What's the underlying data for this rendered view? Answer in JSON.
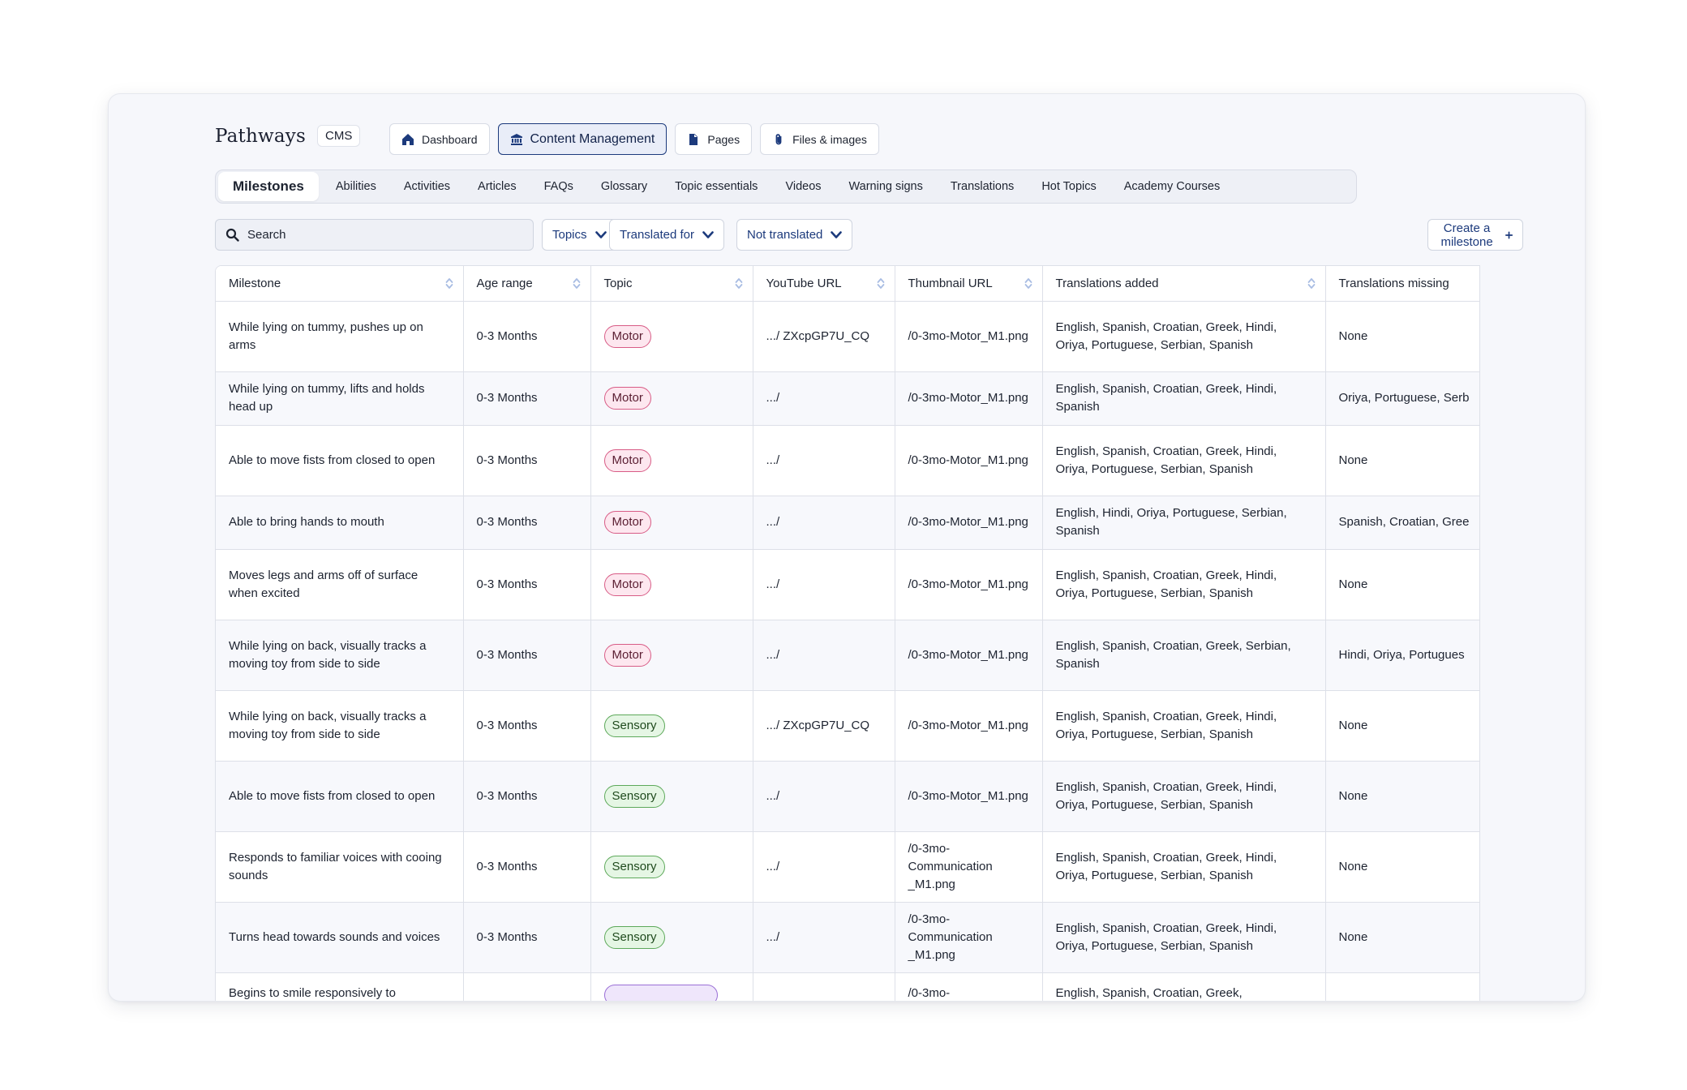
{
  "brand": {
    "name": "Pathways",
    "tag": "CMS"
  },
  "topnav": [
    {
      "label": "Dashboard",
      "icon": "home-icon",
      "active": false
    },
    {
      "label": "Content Management",
      "icon": "bank-icon",
      "active": true
    },
    {
      "label": "Pages",
      "icon": "document-icon",
      "active": false
    },
    {
      "label": "Files & images",
      "icon": "paperclip-icon",
      "active": false
    }
  ],
  "subtabs": [
    "Milestones",
    "Abilities",
    "Activities",
    "Articles",
    "FAQs",
    "Glossary",
    "Topic essentials",
    "Videos",
    "Warning signs",
    "Translations",
    "Hot Topics",
    "Academy Courses"
  ],
  "toolbar": {
    "search_placeholder": "Search",
    "filters": [
      "Topics",
      "Translated for",
      "Not translated"
    ],
    "create_label": "Create a milestone"
  },
  "table": {
    "headers": [
      "Milestone",
      "Age range",
      "Topic",
      "YouTube URL",
      "Thumbnail URL",
      "Translations added",
      "Translations missing"
    ],
    "rows": [
      {
        "milestone": "While lying on tummy, pushes up on arms",
        "age": "0-3 Months",
        "topic": "Motor",
        "youtube": ".../ ZXcpGP7U_CQ",
        "thumb": "/0-3mo-Motor_M1.png",
        "added": "English, Spanish, Croatian, Greek, Hindi, Oriya, Portuguese, Serbian, Spanish",
        "missing": "None"
      },
      {
        "milestone": "While lying on tummy, lifts and holds head up",
        "age": "0-3 Months",
        "topic": "Motor",
        "youtube": ".../",
        "thumb": "/0-3mo-Motor_M1.png",
        "added": "English, Spanish, Croatian, Greek, Hindi, Spanish",
        "missing": "Oriya, Portuguese, Serb"
      },
      {
        "milestone": "Able to move fists from closed to open",
        "age": "0-3 Months",
        "topic": "Motor",
        "youtube": ".../",
        "thumb": "/0-3mo-Motor_M1.png",
        "added": "English, Spanish, Croatian, Greek, Hindi, Oriya, Portuguese, Serbian, Spanish",
        "missing": "None"
      },
      {
        "milestone": "Able to bring hands to mouth",
        "age": "0-3 Months",
        "topic": "Motor",
        "youtube": ".../",
        "thumb": "/0-3mo-Motor_M1.png",
        "added": "English, Hindi, Oriya, Portuguese, Serbian, Spanish",
        "missing": "Spanish, Croatian, Gree"
      },
      {
        "milestone": "Moves legs and arms off of surface when excited",
        "age": "0-3 Months",
        "topic": "Motor",
        "youtube": ".../",
        "thumb": "/0-3mo-Motor_M1.png",
        "added": "English, Spanish, Croatian, Greek, Hindi, Oriya, Portuguese, Serbian, Spanish",
        "missing": "None"
      },
      {
        "milestone": "While lying on back, visually tracks a moving toy from side to side",
        "age": "0-3 Months",
        "topic": "Motor",
        "youtube": ".../",
        "thumb": "/0-3mo-Motor_M1.png",
        "added": "English, Spanish, Croatian, Greek, Serbian, Spanish",
        "missing": "Hindi, Oriya, Portugues"
      },
      {
        "milestone": "While lying on back, visually tracks a moving toy from side to side",
        "age": "0-3 Months",
        "topic": "Sensory",
        "youtube": ".../ ZXcpGP7U_CQ",
        "thumb": "/0-3mo-Motor_M1.png",
        "added": "English, Spanish, Croatian, Greek, Hindi, Oriya, Portuguese, Serbian, Spanish",
        "missing": "None"
      },
      {
        "milestone": "Able to move fists from closed to open",
        "age": "0-3 Months",
        "topic": "Sensory",
        "youtube": ".../",
        "thumb": "/0-3mo-Motor_M1.png",
        "added": "English, Spanish, Croatian, Greek, Hindi, Oriya, Portuguese, Serbian, Spanish",
        "missing": "None"
      },
      {
        "milestone": "Responds to familiar voices with cooing sounds",
        "age": "0-3 Months",
        "topic": "Sensory",
        "youtube": ".../",
        "thumb": "/0-3mo-Communication _M1.png",
        "added": "English, Spanish, Croatian, Greek, Hindi, Oriya, Portuguese, Serbian, Spanish",
        "missing": "None"
      },
      {
        "milestone": "Turns head towards sounds and voices",
        "age": "0-3 Months",
        "topic": "Sensory",
        "youtube": ".../",
        "thumb": "/0-3mo-Communication _M1.png",
        "added": "English, Spanish, Croatian, Greek, Hindi, Oriya, Portuguese, Serbian, Spanish",
        "missing": "None"
      },
      {
        "milestone": "Begins to smile responsively to",
        "age": "",
        "topic": "",
        "youtube": "",
        "thumb": "/0-3mo-",
        "added": "English, Spanish, Croatian, Greek,",
        "missing": ""
      }
    ]
  },
  "colors": {
    "accent": "#1c3a7c",
    "motor": "#d85c86",
    "sensory": "#5da95a",
    "purple": "#9b70d6"
  }
}
